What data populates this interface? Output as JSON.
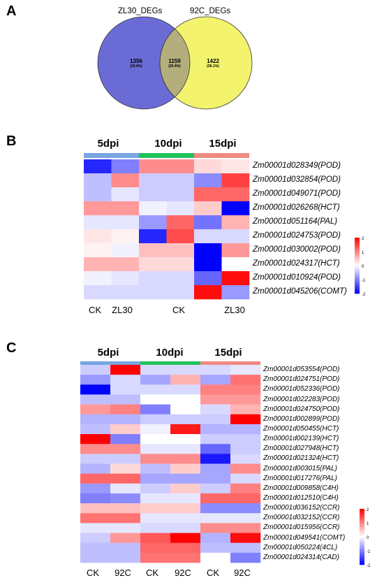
{
  "panels": {
    "a": {
      "letter": "A"
    },
    "b": {
      "letter": "B"
    },
    "c": {
      "letter": "C"
    }
  },
  "chart_data": [
    {
      "type": "venn",
      "sets": [
        {
          "name": "ZL30_DEGs",
          "color": "#6b6bd6"
        },
        {
          "name": "92C_DEGs",
          "color": "#f3f36e"
        }
      ],
      "intersection_color": "#b3ae7c",
      "regions": [
        {
          "count": "1356",
          "percent": "(34.4%)"
        },
        {
          "count": "1159",
          "percent": "(29.4%)"
        },
        {
          "count": "1422",
          "percent": "(36.1%)"
        }
      ]
    },
    {
      "type": "heatmap",
      "groups": [
        {
          "name": "5dpi",
          "color": "#77a6e2"
        },
        {
          "name": "10dpi",
          "color": "#22c25c"
        },
        {
          "name": "15dpi",
          "color": "#f08a82"
        }
      ],
      "columns": [
        "CK",
        "ZL30",
        "CK",
        "ZL30"
      ],
      "column_label_cols": [
        0,
        1,
        4,
        5
      ],
      "rows": [
        "Zm00001d028349(POD)",
        "Zm00001d032854(POD)",
        "Zm00001d049071(POD)",
        "Zm00001d026268(HCT)",
        "Zm00001d051164(PAL)",
        "Zm00001d024753(POD)",
        "Zm00001d030002(POD)",
        "Zm00001d024317(HCT)",
        "Zm00001d010924(POD)",
        "Zm00001d045206(COMT)"
      ],
      "values": [
        [
          -1.7,
          -1.0,
          0.9,
          0.9,
          0.3,
          0.2
        ],
        [
          -0.5,
          0.9,
          -0.4,
          -0.4,
          -0.9,
          1.5
        ],
        [
          -0.5,
          -0.2,
          -0.4,
          -0.4,
          1.2,
          1.2
        ],
        [
          0.8,
          0.8,
          -0.1,
          -0.2,
          0.4,
          -2.0
        ],
        [
          -0.2,
          -0.2,
          -0.8,
          1.2,
          -1.1,
          0.6
        ],
        [
          0.2,
          0.1,
          -1.7,
          1.4,
          -0.3,
          -0.3
        ],
        [
          0.1,
          -0.1,
          0.5,
          0.5,
          -2.0,
          0.8
        ],
        [
          0.6,
          0.6,
          0.3,
          0.3,
          -2.0,
          0.0
        ],
        [
          -0.1,
          -0.2,
          -0.3,
          -0.3,
          -1.2,
          1.9
        ],
        [
          -0.3,
          -0.3,
          -0.3,
          -0.3,
          1.9,
          -0.8
        ]
      ],
      "scale": {
        "min": -2,
        "max": 2,
        "ticks": [
          "2",
          "1",
          "0",
          "-1",
          "-2"
        ]
      }
    },
    {
      "type": "heatmap",
      "groups": [
        {
          "name": "5dpi",
          "color": "#77a6e2"
        },
        {
          "name": "10dpi",
          "color": "#22c25c"
        },
        {
          "name": "15dpi",
          "color": "#f08a82"
        }
      ],
      "columns": [
        "CK",
        "92C",
        "CK",
        "92C",
        "CK",
        "92C"
      ],
      "column_label_cols": [
        0,
        1,
        2,
        3,
        4,
        5
      ],
      "rows": [
        "Zm00001d053554(POD)",
        "Zm00001d024751(POD)",
        "Zm00001d052336(POD)",
        "Zm00001d022283(POD)",
        "Zm00001d024750(POD)",
        "Zm00001d002899(POD)",
        "Zm00001d050455(HCT)",
        "Zm00001d002139(HCT)",
        "Zm00001d027948(HCT)",
        "Zm00001d021324(HCT)",
        "Zm00001d003015(PAL)",
        "Zm00001d017276(PAL)",
        "Zm00001d009858(C4H)",
        "Zm00001d012510(C4H)",
        "Zm00001d036152(CCR)",
        "Zm00001d032152(CCR)",
        "Zm00001d015956(CCR)",
        "Zm00001d049541(COMT)",
        "Zm00001d050224(4CL)",
        "Zm00001d024314(CAD)"
      ],
      "values": [
        [
          -0.4,
          2.0,
          -0.3,
          -0.3,
          -0.3,
          -0.2
        ],
        [
          -0.8,
          -0.3,
          -0.7,
          0.6,
          -0.7,
          1.1
        ],
        [
          -2.0,
          -0.3,
          -0.3,
          -0.3,
          1.0,
          1.0
        ],
        [
          -0.5,
          -0.5,
          0.0,
          0.0,
          0.8,
          0.8
        ],
        [
          0.8,
          1.0,
          -1.0,
          0.0,
          -0.3,
          0.6
        ],
        [
          -0.6,
          -0.6,
          -0.4,
          -0.4,
          -0.4,
          2.0
        ],
        [
          -0.5,
          0.4,
          -0.1,
          1.8,
          -0.6,
          -0.6
        ],
        [
          2.0,
          -1.0,
          0.0,
          0.0,
          -0.4,
          -0.4
        ],
        [
          0.9,
          0.9,
          -0.2,
          -0.2,
          -1.2,
          -0.4
        ],
        [
          -0.4,
          -0.4,
          0.9,
          0.9,
          -1.8,
          -0.3
        ],
        [
          -0.6,
          0.3,
          -0.5,
          0.4,
          -0.7,
          0.9
        ],
        [
          1.2,
          1.2,
          -0.7,
          -0.7,
          -0.7,
          -0.3
        ],
        [
          -0.8,
          -0.2,
          -0.4,
          0.4,
          -0.4,
          1.0
        ],
        [
          -1.0,
          -0.9,
          -0.2,
          -0.2,
          1.2,
          1.2
        ],
        [
          0.5,
          0.5,
          0.4,
          0.4,
          -0.9,
          -0.9
        ],
        [
          1.1,
          1.1,
          -0.2,
          -0.2,
          -0.2,
          -0.2
        ],
        [
          -0.2,
          -0.2,
          -0.3,
          -0.3,
          0.9,
          0.9
        ],
        [
          -0.4,
          0.8,
          1.3,
          2.0,
          -0.6,
          1.9
        ],
        [
          -0.5,
          -0.5,
          1.2,
          1.2,
          -0.5,
          -0.5
        ],
        [
          -0.5,
          -0.5,
          1.1,
          1.1,
          0.0,
          -1.0
        ]
      ],
      "scale": {
        "min": -2,
        "max": 2,
        "ticks": [
          "2",
          "1",
          "0",
          "-1",
          "-2"
        ]
      }
    }
  ]
}
